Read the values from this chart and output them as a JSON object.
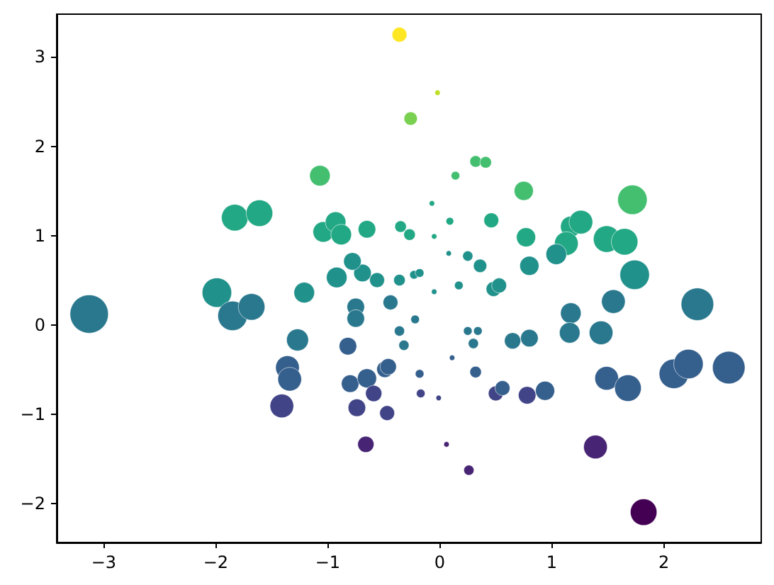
{
  "chart_data": {
    "type": "bubble",
    "x": [
      -0.36,
      -0.02,
      -0.26,
      -1.07,
      0.14,
      0.32,
      0.41,
      -1.83,
      -1.61,
      0.75,
      1.72,
      -0.07,
      0.09,
      0.46,
      -0.35,
      -0.27,
      -0.05,
      0.77,
      1.17,
      1.26,
      1.13,
      1.04,
      1.49,
      1.65,
      1.74,
      0.8,
      0.08,
      0.25,
      0.36,
      -0.23,
      -0.18,
      -0.36,
      -0.05,
      0.17,
      0.48,
      0.53,
      1.55,
      2.3,
      1.17,
      1.16,
      1.44,
      -0.22,
      -0.36,
      -0.32,
      0.25,
      0.34,
      0.3,
      0.65,
      0.8,
      0.11,
      -0.18,
      0.32,
      -0.17,
      -0.01,
      0.5,
      0.56,
      0.78,
      0.94,
      1.49,
      1.68,
      2.09,
      2.22,
      2.58,
      1.39,
      1.82,
      0.06,
      0.26,
      -3.13,
      -1.99,
      -1.85,
      -1.68,
      -1.21,
      -1.27,
      -1.36,
      -1.34,
      -1.41,
      -0.66,
      -0.8,
      -0.65,
      -0.59,
      -0.74,
      -0.47,
      -0.82,
      -0.75,
      -0.75,
      -0.49,
      -0.46,
      -0.44,
      -0.56,
      -0.69,
      -0.78,
      -0.92,
      -1.04,
      -0.93,
      -0.88,
      -0.65
    ],
    "values": [
      3.25,
      2.6,
      2.31,
      1.67,
      1.67,
      1.83,
      1.82,
      1.2,
      1.25,
      1.5,
      1.4,
      1.36,
      1.16,
      1.17,
      1.1,
      1.01,
      0.99,
      0.98,
      1.1,
      1.15,
      0.91,
      0.79,
      0.96,
      0.93,
      0.56,
      0.66,
      0.8,
      0.77,
      0.66,
      0.56,
      0.58,
      0.5,
      0.37,
      0.44,
      0.4,
      0.44,
      0.26,
      0.23,
      0.13,
      -0.09,
      -0.09,
      0.06,
      -0.07,
      -0.23,
      -0.07,
      -0.07,
      -0.21,
      -0.18,
      -0.15,
      -0.37,
      -0.55,
      -0.53,
      -0.77,
      -0.82,
      -0.77,
      -0.71,
      -0.79,
      -0.74,
      -0.6,
      -0.71,
      -0.55,
      -0.44,
      -0.48,
      -1.37,
      -2.1,
      -1.34,
      -1.63,
      0.12,
      0.36,
      0.1,
      0.2,
      0.36,
      -0.17,
      -0.48,
      -0.61,
      -0.91,
      -1.34,
      -0.66,
      -0.6,
      -0.77,
      -0.93,
      -0.99,
      -0.24,
      0.2,
      0.07,
      -0.5,
      -0.47,
      0.25,
      0.5,
      0.58,
      0.71,
      0.53,
      1.04,
      1.15,
      1.01,
      1.07
    ],
    "sizes": [
      0.15,
      0.02,
      0.12,
      0.29,
      0.05,
      0.09,
      0.09,
      0.48,
      0.48,
      0.25,
      0.59,
      0.02,
      0.04,
      0.15,
      0.09,
      0.09,
      0.02,
      0.25,
      0.29,
      0.38,
      0.38,
      0.29,
      0.48,
      0.48,
      0.59,
      0.25,
      0.02,
      0.07,
      0.12,
      0.05,
      0.05,
      0.09,
      0.02,
      0.05,
      0.15,
      0.15,
      0.38,
      0.72,
      0.29,
      0.29,
      0.38,
      0.05,
      0.07,
      0.07,
      0.05,
      0.05,
      0.07,
      0.18,
      0.21,
      0.02,
      0.05,
      0.09,
      0.05,
      0.02,
      0.15,
      0.15,
      0.21,
      0.25,
      0.38,
      0.48,
      0.59,
      0.59,
      0.72,
      0.38,
      0.48,
      0.02,
      0.07,
      1.0,
      0.59,
      0.59,
      0.48,
      0.29,
      0.33,
      0.38,
      0.38,
      0.38,
      0.18,
      0.21,
      0.25,
      0.18,
      0.21,
      0.15,
      0.21,
      0.21,
      0.21,
      0.18,
      0.18,
      0.15,
      0.15,
      0.21,
      0.21,
      0.29,
      0.29,
      0.29,
      0.29,
      0.21
    ],
    "colors": [
      "#fde725",
      "#bddf26",
      "#7ad151",
      "#44bf70",
      "#44bf70",
      "#44bf70",
      "#44bf70",
      "#22a884",
      "#22a884",
      "#44bf70",
      "#44bf70",
      "#22a884",
      "#22a884",
      "#22a884",
      "#22a884",
      "#22a884",
      "#22a884",
      "#22a884",
      "#22a884",
      "#22a884",
      "#22a884",
      "#21918c",
      "#22a884",
      "#22a884",
      "#21918c",
      "#21918c",
      "#21918c",
      "#21918c",
      "#21918c",
      "#21918c",
      "#21918c",
      "#21918c",
      "#21918c",
      "#21918c",
      "#21918c",
      "#21918c",
      "#2a788e",
      "#2a788e",
      "#2a788e",
      "#2a788e",
      "#2a788e",
      "#2a788e",
      "#2a788e",
      "#2a788e",
      "#2a788e",
      "#2a788e",
      "#2a788e",
      "#2a788e",
      "#2a788e",
      "#355f8d",
      "#355f8d",
      "#355f8d",
      "#414487",
      "#414487",
      "#414487",
      "#355f8d",
      "#414487",
      "#355f8d",
      "#355f8d",
      "#355f8d",
      "#355f8d",
      "#355f8d",
      "#355f8d",
      "#482475",
      "#440154",
      "#482475",
      "#482475",
      "#2a788e",
      "#21918c",
      "#2a788e",
      "#2a788e",
      "#21918c",
      "#2a788e",
      "#355f8d",
      "#355f8d",
      "#414487",
      "#482475",
      "#355f8d",
      "#355f8d",
      "#414487",
      "#414487",
      "#414487",
      "#355f8d",
      "#2a788e",
      "#2a788e",
      "#355f8d",
      "#355f8d",
      "#2a788e",
      "#21918c",
      "#21918c",
      "#21918c",
      "#21918c",
      "#22a884",
      "#22a884",
      "#22a884",
      "#22a884"
    ],
    "xlim": [
      -3.42,
      2.87
    ],
    "ylim": [
      -2.44,
      3.48
    ],
    "xticks": [
      -3,
      -2,
      -1,
      0,
      1,
      2
    ],
    "yticks": [
      -2,
      -1,
      0,
      1,
      2,
      3
    ]
  }
}
